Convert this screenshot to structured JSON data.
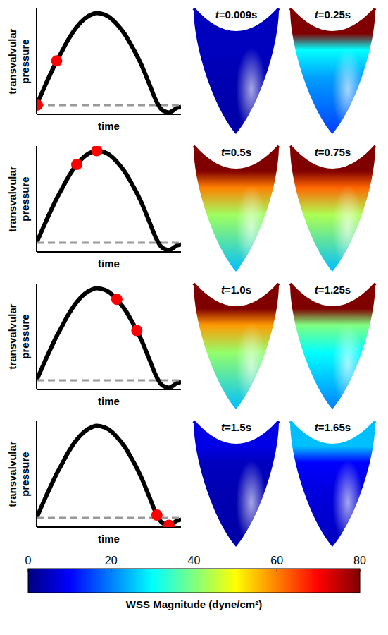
{
  "chart_data": [
    {
      "type": "line",
      "xlabel": "time",
      "ylabel": "transvalvular pressure",
      "xlim": [
        0,
        1.8
      ],
      "ylim": [
        -0.1,
        1.05
      ],
      "tick_labels": false,
      "series": [
        {
          "type": "line",
          "color": "#000000",
          "x": [
            0,
            0.1,
            0.2,
            0.25,
            0.3,
            0.4,
            0.5,
            0.6,
            0.7,
            0.75,
            0.8,
            0.9,
            1.0,
            1.1,
            1.2,
            1.25,
            1.3,
            1.4,
            1.5,
            1.55,
            1.6,
            1.65,
            1.7,
            1.75,
            1.8
          ],
          "values": [
            0,
            0.2,
            0.39,
            0.48,
            0.56,
            0.72,
            0.85,
            0.94,
            0.99,
            1.0,
            0.995,
            0.96,
            0.88,
            0.77,
            0.62,
            0.54,
            0.45,
            0.24,
            0.03,
            -0.04,
            -0.07,
            -0.08,
            -0.06,
            -0.03,
            -0.02
          ]
        },
        {
          "type": "line",
          "line_style": "dashed",
          "color": "#999999",
          "x": [
            0,
            1.8
          ],
          "values": [
            0,
            0
          ]
        },
        {
          "type": "scatter",
          "marker": "circle",
          "color": "#ff0000",
          "x": [
            0.009,
            0.25
          ],
          "values": [
            0,
            0.48
          ]
        }
      ]
    },
    {
      "type": "line",
      "xlabel": "time",
      "ylabel": "transvalvular pressure",
      "xlim": [
        0,
        1.8
      ],
      "ylim": [
        -0.1,
        1.05
      ],
      "tick_labels": false,
      "series": [
        {
          "type": "line",
          "color": "#000000",
          "x": [
            0,
            0.1,
            0.2,
            0.25,
            0.3,
            0.4,
            0.5,
            0.6,
            0.7,
            0.75,
            0.8,
            0.9,
            1.0,
            1.1,
            1.2,
            1.25,
            1.3,
            1.4,
            1.5,
            1.55,
            1.6,
            1.65,
            1.7,
            1.75,
            1.8
          ],
          "values": [
            0,
            0.2,
            0.39,
            0.48,
            0.56,
            0.72,
            0.85,
            0.94,
            0.99,
            1.0,
            0.995,
            0.96,
            0.88,
            0.77,
            0.62,
            0.54,
            0.45,
            0.24,
            0.03,
            -0.04,
            -0.07,
            -0.08,
            -0.06,
            -0.03,
            -0.02
          ]
        },
        {
          "type": "line",
          "line_style": "dashed",
          "color": "#999999",
          "x": [
            0,
            1.8
          ],
          "values": [
            0,
            0
          ]
        },
        {
          "type": "scatter",
          "marker": "circle",
          "color": "#ff0000",
          "x": [
            0.5,
            0.75
          ],
          "values": [
            0.85,
            1.0
          ]
        }
      ]
    },
    {
      "type": "line",
      "xlabel": "time",
      "ylabel": "transvalvular pressure",
      "xlim": [
        0,
        1.8
      ],
      "ylim": [
        -0.1,
        1.05
      ],
      "tick_labels": false,
      "series": [
        {
          "type": "line",
          "color": "#000000",
          "x": [
            0,
            0.1,
            0.2,
            0.25,
            0.3,
            0.4,
            0.5,
            0.6,
            0.7,
            0.75,
            0.8,
            0.9,
            1.0,
            1.1,
            1.2,
            1.25,
            1.3,
            1.4,
            1.5,
            1.55,
            1.6,
            1.65,
            1.7,
            1.75,
            1.8
          ],
          "values": [
            0,
            0.2,
            0.39,
            0.48,
            0.56,
            0.72,
            0.85,
            0.94,
            0.99,
            1.0,
            0.995,
            0.96,
            0.88,
            0.77,
            0.62,
            0.54,
            0.45,
            0.24,
            0.03,
            -0.04,
            -0.07,
            -0.08,
            -0.06,
            -0.03,
            -0.02
          ]
        },
        {
          "type": "line",
          "line_style": "dashed",
          "color": "#999999",
          "x": [
            0,
            1.8
          ],
          "values": [
            0,
            0
          ]
        },
        {
          "type": "scatter",
          "marker": "circle",
          "color": "#ff0000",
          "x": [
            1.0,
            1.25
          ],
          "values": [
            0.88,
            0.54
          ]
        }
      ]
    },
    {
      "type": "line",
      "xlabel": "time",
      "ylabel": "transvalvular pressure",
      "xlim": [
        0,
        1.8
      ],
      "ylim": [
        -0.1,
        1.05
      ],
      "tick_labels": false,
      "series": [
        {
          "type": "line",
          "color": "#000000",
          "x": [
            0,
            0.1,
            0.2,
            0.25,
            0.3,
            0.4,
            0.5,
            0.6,
            0.7,
            0.75,
            0.8,
            0.9,
            1.0,
            1.1,
            1.2,
            1.25,
            1.3,
            1.4,
            1.5,
            1.55,
            1.6,
            1.65,
            1.7,
            1.75,
            1.8
          ],
          "values": [
            0,
            0.2,
            0.39,
            0.48,
            0.56,
            0.72,
            0.85,
            0.94,
            0.99,
            1.0,
            0.995,
            0.96,
            0.88,
            0.77,
            0.62,
            0.54,
            0.45,
            0.24,
            0.03,
            -0.04,
            -0.07,
            -0.08,
            -0.06,
            -0.03,
            -0.02
          ]
        },
        {
          "type": "line",
          "line_style": "dashed",
          "color": "#999999",
          "x": [
            0,
            1.8
          ],
          "values": [
            0,
            0
          ]
        },
        {
          "type": "scatter",
          "marker": "circle",
          "color": "#ff0000",
          "x": [
            1.5,
            1.65
          ],
          "values": [
            0.03,
            -0.08
          ]
        }
      ]
    }
  ],
  "snapshots": [
    {
      "label": "t=0.009s",
      "wss": {
        "free_edge": 5,
        "belly": 5,
        "base": 3
      }
    },
    {
      "label": "t=0.25s",
      "wss": {
        "free_edge": 80,
        "belly": 30,
        "base": 15
      }
    },
    {
      "label": "t=0.5s",
      "wss": {
        "free_edge": 80,
        "belly": 60,
        "base": 25
      }
    },
    {
      "label": "t=0.75s",
      "wss": {
        "free_edge": 80,
        "belly": 62,
        "base": 25
      }
    },
    {
      "label": "t=1.0s",
      "wss": {
        "free_edge": 80,
        "belly": 58,
        "base": 25
      }
    },
    {
      "label": "t=1.25s",
      "wss": {
        "free_edge": 80,
        "belly": 40,
        "base": 20
      }
    },
    {
      "label": "t=1.5s",
      "wss": {
        "free_edge": 8,
        "belly": 5,
        "base": 3
      }
    },
    {
      "label": "t=1.65s",
      "wss": {
        "free_edge": 25,
        "belly": 10,
        "base": 5
      }
    }
  ],
  "colorbar": {
    "range": [
      0,
      80
    ],
    "ticks": [
      0,
      20,
      40,
      60,
      80
    ],
    "label": "WSS Magnitude (dyne/cm²)"
  }
}
